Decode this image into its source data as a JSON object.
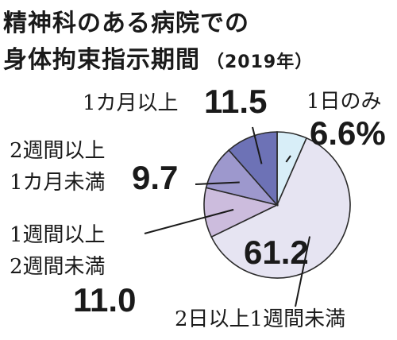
{
  "title_line1": "精神科のある病院での",
  "title_line2": "身体拘束指示期間",
  "year": "（2019年）",
  "chart_data": {
    "type": "pie",
    "title": "精神科のある病院での身体拘束指示期間（2019年）",
    "unit": "%",
    "slices": [
      {
        "label": "1日のみ",
        "value": 6.6,
        "value_label": "6.6%",
        "color": "#d8eef8"
      },
      {
        "label": "2日以上1週間未満",
        "value": 61.2,
        "value_label": "61.2",
        "color": "#e6e4f2"
      },
      {
        "label_lines": [
          "1週間以上",
          "2週間未満"
        ],
        "value": 11.0,
        "value_label": "11.0",
        "color": "#ccbcdd"
      },
      {
        "label_lines": [
          "2週間以上",
          "1カ月未満"
        ],
        "value": 9.7,
        "value_label": "9.7",
        "color": "#9d98cd"
      },
      {
        "label": "1カ月以上",
        "value": 11.5,
        "value_label": "11.5",
        "color": "#6d72b6"
      }
    ]
  }
}
